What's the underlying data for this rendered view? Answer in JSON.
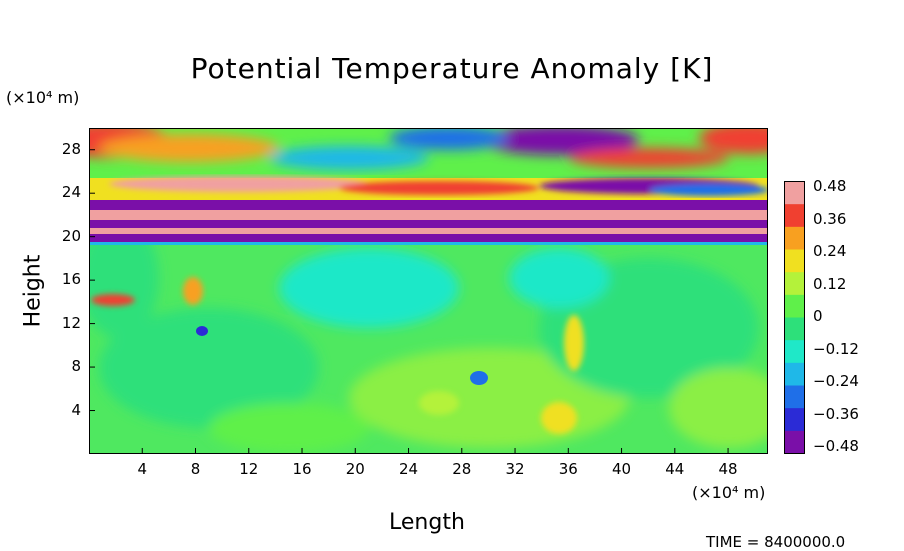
{
  "chart_data": {
    "type": "heatmap",
    "title": "Potential Temperature Anomaly [K]",
    "xlabel": "Length",
    "ylabel": "Height",
    "x_unit": "(×10⁴ m)",
    "y_unit": "(×10⁴ m)",
    "x_ticks": [
      4,
      8,
      12,
      16,
      20,
      24,
      28,
      32,
      36,
      40,
      44,
      48
    ],
    "y_ticks": [
      4,
      8,
      12,
      16,
      20,
      24,
      28
    ],
    "xlim": [
      0,
      51
    ],
    "ylim": [
      0,
      30
    ],
    "colorbar": {
      "ticks": [
        "0.48",
        "0.36",
        "0.24",
        "0.12",
        "0",
        "−0.12",
        "−0.24",
        "−0.36",
        "−0.48"
      ],
      "range": [
        -0.48,
        0.48
      ]
    },
    "colors": [
      "#7a0fa8",
      "#2b2bd6",
      "#1f6fe8",
      "#1fb8e8",
      "#1fe8c8",
      "#2de07a",
      "#5ff04a",
      "#b4f23a",
      "#f0e020",
      "#f8a020",
      "#f04030",
      "#f0a0a0"
    ]
  },
  "footer": {
    "time_label": "TIME = 8400000.0"
  }
}
